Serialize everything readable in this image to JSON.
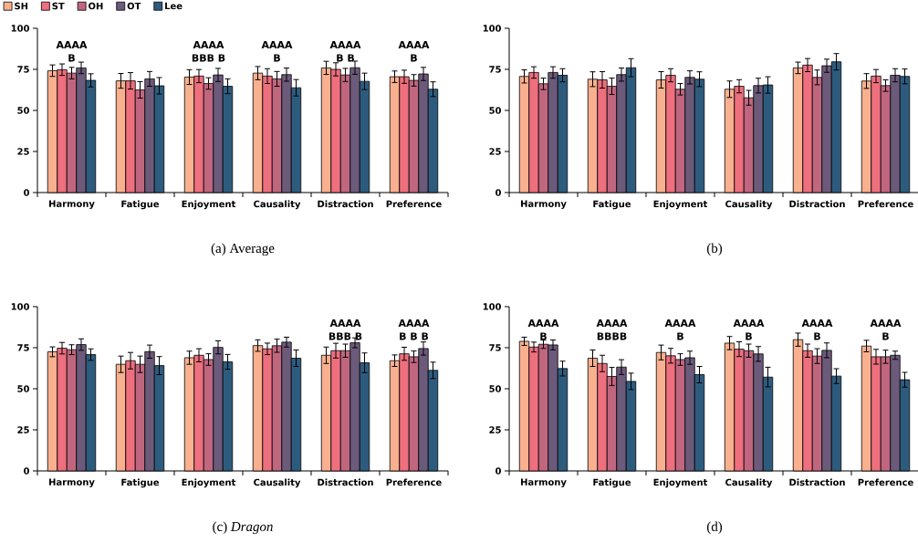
{
  "chart_data": [
    {
      "type": "bar",
      "title": "(a) Average",
      "categories": [
        "Harmony",
        "Fatigue",
        "Enjoyment",
        "Causality",
        "Distraction",
        "Preference"
      ],
      "ylim": [
        0,
        100
      ],
      "yticks": [
        0,
        25,
        50,
        75,
        100
      ],
      "legend": "top left",
      "series": [
        {
          "name": "SH",
          "color": "#f8b08e",
          "values": [
            74.2,
            68,
            70.3,
            72.7,
            75.9,
            70.5
          ],
          "errors": [
            3.5,
            4.5,
            4.5,
            4,
            4,
            3.5
          ]
        },
        {
          "name": "ST",
          "color": "#ee6f7e",
          "values": [
            74.8,
            68,
            70.9,
            70.9,
            75,
            70.5
          ],
          "errors": [
            3.5,
            5,
            4,
            4.5,
            4,
            4
          ]
        },
        {
          "name": "OH",
          "color": "#c0667f",
          "values": [
            72.7,
            62.5,
            66.4,
            69.2,
            71.6,
            68.3
          ],
          "errors": [
            3.5,
            5,
            3.5,
            4.5,
            4,
            3.5
          ]
        },
        {
          "name": "OT",
          "color": "#6c5a7b",
          "values": [
            75.9,
            69.2,
            71.6,
            71.8,
            76,
            72.2
          ],
          "errors": [
            3.5,
            4.5,
            4,
            4,
            4,
            4
          ]
        },
        {
          "name": "Lee",
          "color": "#2d5b7e",
          "values": [
            68.3,
            65,
            64.7,
            63.8,
            67.7,
            62.9
          ],
          "errors": [
            4,
            5,
            4.5,
            5,
            5,
            4.5
          ]
        }
      ],
      "annotations": [
        "AAAA",
        "B",
        "AAAA",
        "BBB B",
        "AAAA",
        "B",
        "AAAA",
        "B B",
        "AAAA",
        "B"
      ]
    },
    {
      "type": "bar",
      "title": "(b)",
      "categories": [
        "Harmony",
        "Fatigue",
        "Enjoyment",
        "Causality",
        "Distraction",
        "Preference"
      ],
      "ylim": [
        0,
        100
      ],
      "yticks": [
        0,
        25,
        50,
        75,
        100
      ],
      "series": [
        {
          "color": "#f8b08e",
          "values": [
            70.7,
            69,
            68.6,
            62.9,
            75.9,
            67.9
          ],
          "errors": [
            4,
            4.5,
            5,
            5,
            3.5,
            4.5
          ]
        },
        {
          "color": "#ee6f7e",
          "values": [
            73.1,
            68.6,
            71.4,
            64.7,
            77.6,
            70.9
          ],
          "errors": [
            3.5,
            5,
            4,
            4,
            4,
            4
          ]
        },
        {
          "color": "#c0667f",
          "values": [
            66.2,
            64.7,
            62.9,
            57.7,
            70.1,
            65.1
          ],
          "errors": [
            3.5,
            5,
            3.5,
            4.5,
            4.5,
            3.5
          ]
        },
        {
          "color": "#6c5a7b",
          "values": [
            73.1,
            71.8,
            70.1,
            65.1,
            77.2,
            71.4
          ],
          "errors": [
            3.5,
            4,
            4,
            4.5,
            4,
            4
          ]
        },
        {
          "color": "#2d5b7e",
          "values": [
            71.4,
            76,
            69,
            65.5,
            79.6,
            70.7
          ],
          "errors": [
            4,
            5.5,
            4.5,
            5,
            5,
            4.5
          ]
        }
      ]
    },
    {
      "type": "bar",
      "title": "(c) *Dragon*",
      "categories": [
        "Harmony",
        "Fatigue",
        "Enjoyment",
        "Causality",
        "Distraction",
        "Preference"
      ],
      "ylim": [
        0,
        100
      ],
      "yticks": [
        0,
        25,
        50,
        75,
        100
      ],
      "series": [
        {
          "color": "#f8b08e",
          "values": [
            72.5,
            64.9,
            68.9,
            76.3,
            70.4,
            67.1
          ],
          "errors": [
            3,
            5,
            4,
            3.5,
            5,
            3.5
          ]
        },
        {
          "color": "#ee6f7e",
          "values": [
            74.7,
            67.1,
            70.4,
            74.3,
            73.2,
            71.3
          ],
          "errors": [
            3.5,
            5,
            4,
            3.5,
            4.5,
            4
          ]
        },
        {
          "color": "#c0667f",
          "values": [
            73.8,
            64.9,
            67.8,
            76.2,
            73.2,
            69.5
          ],
          "errors": [
            3,
            5,
            3.5,
            4,
            4,
            3.5
          ]
        },
        {
          "color": "#6c5a7b",
          "values": [
            76.9,
            72.6,
            75.2,
            78.4,
            78,
            74.5
          ],
          "errors": [
            3.5,
            4,
            4,
            3,
            3,
            4
          ]
        },
        {
          "color": "#2d5b7e",
          "values": [
            70.8,
            64.1,
            66.4,
            68.6,
            65.8,
            61.2
          ],
          "errors": [
            3.5,
            5.5,
            4.5,
            5,
            6,
            5
          ]
        }
      ],
      "annotations": [
        "AAAA",
        "BBB B",
        "AAAA",
        "B B B"
      ]
    },
    {
      "type": "bar",
      "title": "(d)",
      "categories": [
        "Harmony",
        "Fatigue",
        "Enjoyment",
        "Causality",
        "Distraction",
        "Preference"
      ],
      "ylim": [
        0,
        100
      ],
      "yticks": [
        0,
        25,
        50,
        75,
        100
      ],
      "series": [
        {
          "color": "#f8b08e",
          "values": [
            78.9,
            68.6,
            72.1,
            77.8,
            79.9,
            76
          ],
          "errors": [
            2.5,
            5,
            4.5,
            4,
            4,
            3.5
          ]
        },
        {
          "color": "#ee6f7e",
          "values": [
            75.4,
            65.4,
            70.1,
            74.1,
            73.2,
            69.5
          ],
          "errors": [
            3,
            5,
            4.5,
            4.5,
            4,
            4.5
          ]
        },
        {
          "color": "#c0667f",
          "values": [
            77.1,
            57.5,
            67.8,
            73.2,
            69.9,
            69.5
          ],
          "errors": [
            2.5,
            5.5,
            3.5,
            4,
            4.5,
            4
          ]
        },
        {
          "color": "#6c5a7b",
          "values": [
            76.7,
            63.2,
            68.9,
            71.2,
            73.4,
            70.4
          ],
          "errors": [
            3,
            4.5,
            4,
            4.5,
            4.5,
            2.5
          ]
        },
        {
          "color": "#2d5b7e",
          "values": [
            62.3,
            54.5,
            58.6,
            57.1,
            57.7,
            55.5
          ],
          "errors": [
            4.5,
            5,
            5,
            6,
            4.5,
            4.5
          ]
        }
      ],
      "annotations": [
        "AAAA",
        "B",
        "AAAA",
        "BBBB",
        "AAAA",
        "B",
        "AAAA",
        "B",
        "AAAA",
        "B",
        "AAAA",
        "B"
      ]
    }
  ]
}
